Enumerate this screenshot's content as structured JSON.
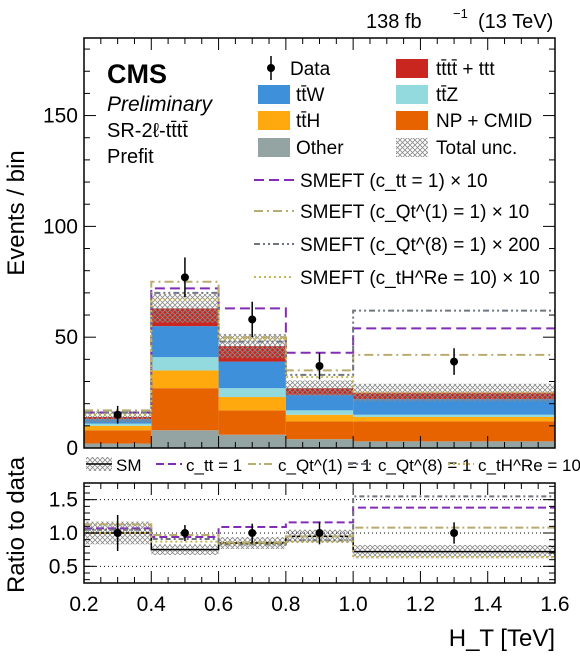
{
  "header": {
    "lumi": "138 fb",
    "lumi_sup": "−1",
    "energy": "(13 TeV)"
  },
  "labels": {
    "cms": "CMS",
    "preliminary": "Preliminary",
    "region": "SR-2ℓ-tt̄tt̄",
    "prefit": "Prefit"
  },
  "legend_main": {
    "data": "Data",
    "tttt": "tt̄tt̄ + ttt",
    "ttW": "tt̄W",
    "ttZ": "tt̄Z",
    "ttH": "tt̄H",
    "np": "NP + CMID",
    "other": "Other",
    "unc": "Total unc."
  },
  "legend_smeft": [
    {
      "text": "SMEFT (c_tt = 1) × 10"
    },
    {
      "text": "SMEFT (c_Qt^(1) = 1) × 10"
    },
    {
      "text": "SMEFT (c_Qt^(8) = 1) × 200"
    },
    {
      "text": "SMEFT (c_tH^Re = 10) × 10"
    }
  ],
  "legend_ratio": {
    "sm": "SM",
    "ctt": "c_tt = 1",
    "cqt1": "c_Qt^(1) = 1",
    "cqt8": "c_Qt^(8) = 1",
    "cth": "c_tH^Re = 10"
  },
  "colors": {
    "tttt": "#c8261e",
    "ttW": "#3f90da",
    "ttZ": "#92dadd",
    "ttH": "#ffa90e",
    "np": "#e76300",
    "other": "#94a4a2",
    "ctt": "#832db6",
    "cqt1": "#b9ac70",
    "cqt8": "#717581",
    "cth": "#c8b450"
  },
  "chart_data": [
    {
      "type": "bar",
      "stacked": true,
      "xlabel": "H_T [TeV]",
      "ylabel": "Events / bin",
      "xlim": [
        0.2,
        1.6
      ],
      "ylim": [
        0,
        185
      ],
      "bin_edges": [
        0.2,
        0.4,
        0.6,
        0.8,
        1.0,
        1.6
      ],
      "series": [
        {
          "name": "Other",
          "key": "other",
          "values": [
            2,
            8,
            6,
            4,
            3
          ]
        },
        {
          "name": "NP + CMID",
          "key": "np",
          "values": [
            6,
            19,
            11,
            8,
            9
          ]
        },
        {
          "name": "tt̄H",
          "key": "ttH",
          "values": [
            2,
            8,
            6,
            3,
            2
          ]
        },
        {
          "name": "tt̄Z",
          "key": "ttZ",
          "values": [
            1,
            6,
            4,
            2,
            1
          ]
        },
        {
          "name": "tt̄W",
          "key": "ttW",
          "values": [
            2,
            14,
            12,
            7,
            7
          ]
        },
        {
          "name": "tt̄tt̄ + ttt",
          "key": "tttt",
          "values": [
            1,
            8,
            7,
            3,
            3
          ]
        }
      ],
      "total_unc": [
        2.5,
        6.5,
        5.5,
        3.5,
        4.0
      ],
      "data": {
        "name": "Data",
        "x": [
          0.3,
          0.5,
          0.7,
          0.9,
          1.3
        ],
        "y": [
          15,
          77,
          58,
          37,
          39
        ],
        "err": [
          4,
          9,
          8,
          6,
          6
        ]
      },
      "smeft": [
        {
          "name": "SMEFT (c_tt = 1) × 10",
          "key": "ctt",
          "dash": "10,5",
          "values": [
            16,
            72,
            63,
            43,
            54
          ]
        },
        {
          "name": "SMEFT (c_Qt^(1) = 1) × 10",
          "key": "cqt1",
          "dash": "9,4,2,4",
          "values": [
            17,
            75,
            50,
            35,
            42
          ]
        },
        {
          "name": "SMEFT (c_Qt^(8) = 1) × 200",
          "key": "cqt8",
          "dash": "6,3,2,3,2,3",
          "values": [
            16,
            70,
            48,
            33,
            62
          ]
        },
        {
          "name": "SMEFT (c_tH^Re = 10) × 10",
          "key": "cth",
          "dash": "2,3",
          "values": [
            15,
            67,
            49,
            32,
            25
          ]
        }
      ]
    },
    {
      "type": "line",
      "ylabel": "Ratio to data",
      "xlabel": "H_T [TeV]",
      "xlim": [
        0.2,
        1.6
      ],
      "ylim": [
        0.25,
        1.75
      ],
      "yticks": [
        0.5,
        1.0,
        1.5
      ],
      "reference_lines": [
        0.5,
        1.0,
        1.5
      ],
      "sm": [
        1.0,
        0.75,
        0.85,
        0.95,
        0.72
      ],
      "sm_unc": [
        0.17,
        0.08,
        0.09,
        0.1,
        0.1
      ],
      "series": [
        {
          "name": "c_tt = 1",
          "key": "ctt",
          "values": [
            1.07,
            0.94,
            1.09,
            1.16,
            1.38
          ]
        },
        {
          "name": "c_Qt^(1) = 1",
          "key": "cqt1",
          "values": [
            1.13,
            0.97,
            0.86,
            0.95,
            1.08
          ]
        },
        {
          "name": "c_Qt^(8) = 1",
          "key": "cqt8",
          "values": [
            1.05,
            0.91,
            0.83,
            0.89,
            1.55
          ]
        },
        {
          "name": "c_tH^Re = 10",
          "key": "cth",
          "values": [
            1.0,
            0.87,
            0.84,
            0.87,
            0.64
          ]
        }
      ],
      "data": {
        "x": [
          0.3,
          0.5,
          0.7,
          0.9,
          1.3
        ],
        "y": [
          1.0,
          1.0,
          1.0,
          1.0,
          1.0
        ],
        "err": [
          0.27,
          0.12,
          0.14,
          0.17,
          0.16
        ]
      }
    }
  ]
}
